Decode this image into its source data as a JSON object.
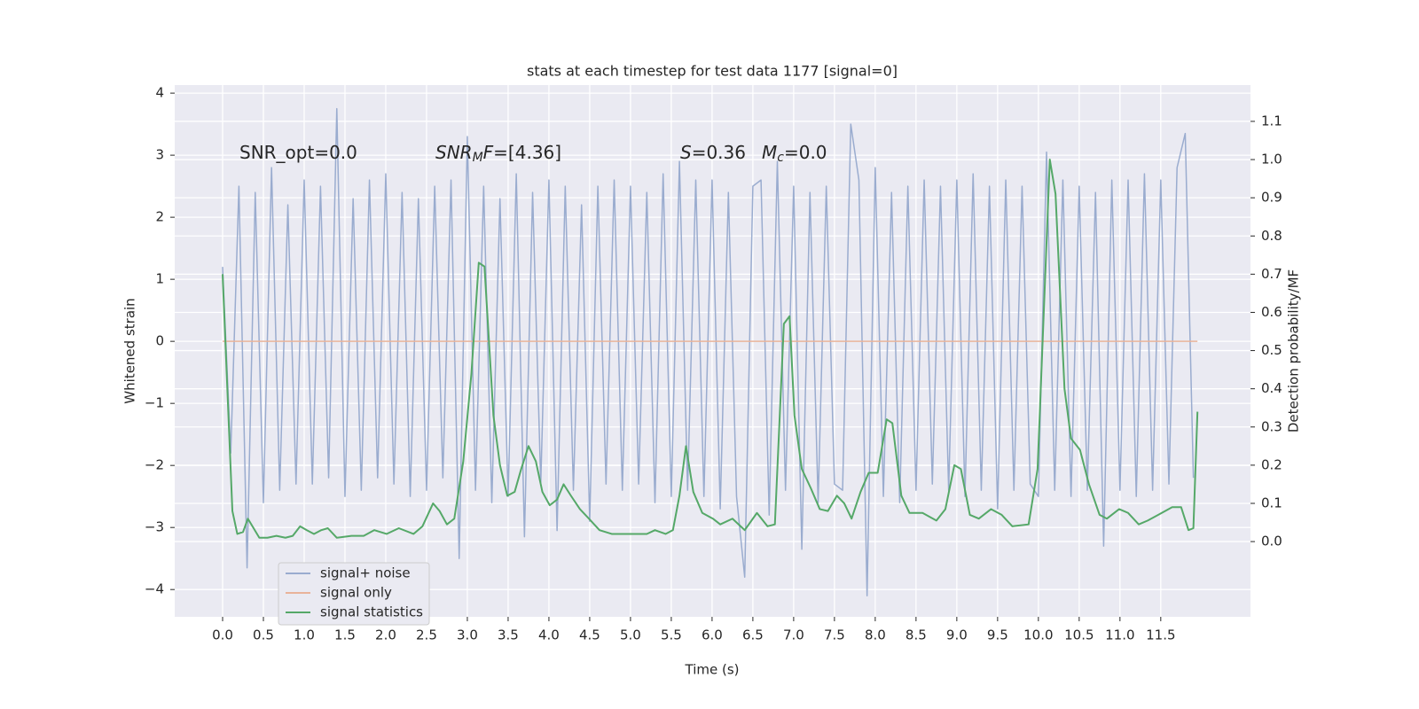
{
  "chart_data": {
    "type": "line",
    "title": "stats at each timestep for test data 1177 [signal=0]",
    "x_label": "Time (s)",
    "y_label": "Whitened strain",
    "y2_label": "Detection probability/MF",
    "xlim": [
      -0.587,
      12.6
    ],
    "ylim": [
      -4.44,
      4.13
    ],
    "y2lim": [
      -0.197,
      1.195
    ],
    "xticks": [
      {
        "value": 0,
        "label": "0.0"
      },
      0.5,
      {
        "value": 1,
        "label": "1.0"
      },
      1.5,
      {
        "value": 2,
        "label": "2.0"
      },
      2.5,
      {
        "value": 3,
        "label": "3.0"
      },
      3.5,
      {
        "value": 4,
        "label": "4.0"
      },
      4.5,
      {
        "value": 5,
        "label": "5.0"
      },
      5.5,
      {
        "value": 6,
        "label": "6.0"
      },
      6.5,
      {
        "value": 7,
        "label": "7.0"
      },
      7.5,
      {
        "value": 8,
        "label": "8.0"
      },
      8.5,
      {
        "value": 9,
        "label": "9.0"
      },
      9.5,
      {
        "value": 10,
        "label": "10.0"
      },
      10.5,
      {
        "value": 11,
        "label": "11.0"
      },
      11.5
    ],
    "yticks": [
      {
        "value": -4,
        "label": "−4"
      },
      {
        "value": -3,
        "label": "−3"
      },
      {
        "value": -2,
        "label": "−2"
      },
      {
        "value": -1,
        "label": "−1"
      },
      0,
      1,
      2,
      3,
      4
    ],
    "y2ticks": [
      {
        "value": 0,
        "label": "0.0"
      },
      0.1,
      0.2,
      0.3,
      0.4,
      0.5,
      0.6,
      0.7,
      0.8,
      0.9,
      {
        "value": 1,
        "label": "1.0"
      },
      1.1
    ],
    "grid": true,
    "legend": "lower left",
    "series": [
      {
        "name": "signal+ noise",
        "color": "#9aaccf",
        "x": [
          0,
          0.1,
          0.2,
          0.3,
          0.4,
          0.5,
          0.6,
          0.7,
          0.8,
          0.9,
          1,
          1.1,
          1.2,
          1.3,
          1.4,
          1.5,
          1.6,
          1.7,
          1.8,
          1.9,
          2,
          2.1,
          2.2,
          2.3,
          2.4,
          2.5,
          2.6,
          2.7,
          2.8,
          2.9,
          3,
          3.1,
          3.2,
          3.3,
          3.4,
          3.5,
          3.6,
          3.7,
          3.8,
          3.9,
          4,
          4.1,
          4.2,
          4.3,
          4.4,
          4.5,
          4.6,
          4.7,
          4.8,
          4.9,
          5,
          5.1,
          5.2,
          5.3,
          5.4,
          5.5,
          5.6,
          5.7,
          5.8,
          5.9,
          6,
          6.1,
          6.2,
          6.3,
          6.4,
          6.5,
          6.6,
          6.7,
          6.8,
          6.9,
          7,
          7.1,
          7.2,
          7.3,
          7.4,
          7.5,
          7.6,
          7.7,
          7.8,
          7.9,
          8,
          8.1,
          8.2,
          8.3,
          8.4,
          8.5,
          8.6,
          8.7,
          8.8,
          8.9,
          9,
          9.1,
          9.2,
          9.3,
          9.4,
          9.5,
          9.6,
          9.7,
          9.8,
          9.9,
          10,
          10.1,
          10.2,
          10.3,
          10.4,
          10.5,
          10.6,
          10.7,
          10.8,
          10.9,
          11,
          11.1,
          11.2,
          11.3,
          11.4,
          11.5,
          11.6,
          11.7,
          11.8,
          11.9
        ],
        "values": [
          1.2,
          -1.8,
          2.5,
          -3.65,
          2.4,
          -2.6,
          2.8,
          -2.4,
          2.2,
          -2.3,
          2.6,
          -2.3,
          2.5,
          -2.2,
          3.75,
          -2.5,
          2.3,
          -2.4,
          2.6,
          -2.2,
          2.7,
          -2.3,
          2.4,
          -2.5,
          2.3,
          -2.4,
          2.5,
          -2.2,
          2.6,
          -3.5,
          3.3,
          -2.4,
          2.5,
          -2.6,
          2.3,
          -2.5,
          2.7,
          -3.15,
          2.4,
          -2.3,
          2.6,
          -3.05,
          2.5,
          -2.4,
          2.2,
          -2.9,
          2.5,
          -2.3,
          2.6,
          -2.4,
          2.5,
          -2.3,
          2.4,
          -2.6,
          2.7,
          -2.5,
          2.9,
          -2.4,
          2.6,
          -2.5,
          2.6,
          -2.7,
          2.4,
          -2.5,
          -3.8,
          2.5,
          2.6,
          -2.8,
          2.9,
          -2.4,
          2.5,
          -3.35,
          2.4,
          -2.6,
          2.5,
          -2.3,
          -2.4,
          3.5,
          2.6,
          -4.1,
          2.8,
          -2.5,
          2.4,
          -2.6,
          2.5,
          -2.4,
          2.6,
          -2.3,
          2.5,
          -2.4,
          2.6,
          -2.5,
          2.7,
          -2.4,
          2.5,
          -2.7,
          2.6,
          -2.4,
          2.5,
          -2.3,
          -2.5,
          3.05,
          -2.4,
          2.6,
          -2.5,
          2.5,
          -2.4,
          2.4,
          -3.3,
          2.6,
          -2.4,
          2.6,
          -2.5,
          2.7,
          -2.4,
          2.6,
          -2.3,
          2.8,
          3.35,
          -2.2
        ]
      },
      {
        "name": "signal only",
        "color": "#e9b39a",
        "x": [
          0,
          11.95
        ],
        "values": [
          0,
          0
        ]
      },
      {
        "name": "signal statistics",
        "color": "#55a868",
        "axis": "y2",
        "x": [
          0,
          0.12,
          0.18,
          0.25,
          0.31,
          0.45,
          0.55,
          0.66,
          0.77,
          0.86,
          0.95,
          1.03,
          1.12,
          1.21,
          1.29,
          1.4,
          1.58,
          1.73,
          1.86,
          2.01,
          2.16,
          2.34,
          2.45,
          2.58,
          2.66,
          2.75,
          2.84,
          2.95,
          3.05,
          3.14,
          3.21,
          3.32,
          3.4,
          3.49,
          3.58,
          3.66,
          3.75,
          3.84,
          3.92,
          4.01,
          4.1,
          4.18,
          4.27,
          4.38,
          4.49,
          4.62,
          4.77,
          4.92,
          5.05,
          5.2,
          5.3,
          5.43,
          5.52,
          5.6,
          5.68,
          5.77,
          5.88,
          6.01,
          6.1,
          6.25,
          6.4,
          6.55,
          6.68,
          6.77,
          6.88,
          6.95,
          7.01,
          7.1,
          7.21,
          7.32,
          7.42,
          7.53,
          7.62,
          7.71,
          7.82,
          7.92,
          8.03,
          8.14,
          8.21,
          8.32,
          8.42,
          8.58,
          8.75,
          8.86,
          8.97,
          9.05,
          9.16,
          9.27,
          9.42,
          9.55,
          9.68,
          9.88,
          9.99,
          10.14,
          10.21,
          10.32,
          10.4,
          10.51,
          10.62,
          10.75,
          10.84,
          10.99,
          11.1,
          11.23,
          11.34,
          11.47,
          11.64,
          11.75,
          11.84,
          11.9,
          11.95
        ],
        "values": [
          0.7,
          0.08,
          0.02,
          0.025,
          0.06,
          0.01,
          0.01,
          0.015,
          0.01,
          0.015,
          0.04,
          0.03,
          0.02,
          0.03,
          0.035,
          0.01,
          0.015,
          0.015,
          0.03,
          0.02,
          0.035,
          0.02,
          0.04,
          0.1,
          0.08,
          0.045,
          0.06,
          0.21,
          0.44,
          0.73,
          0.72,
          0.33,
          0.2,
          0.12,
          0.13,
          0.19,
          0.25,
          0.21,
          0.13,
          0.095,
          0.11,
          0.15,
          0.12,
          0.085,
          0.06,
          0.03,
          0.02,
          0.02,
          0.02,
          0.02,
          0.03,
          0.02,
          0.03,
          0.12,
          0.25,
          0.13,
          0.075,
          0.06,
          0.045,
          0.06,
          0.03,
          0.075,
          0.04,
          0.045,
          0.57,
          0.59,
          0.33,
          0.19,
          0.14,
          0.085,
          0.08,
          0.12,
          0.1,
          0.06,
          0.13,
          0.18,
          0.18,
          0.32,
          0.31,
          0.12,
          0.075,
          0.075,
          0.055,
          0.085,
          0.2,
          0.19,
          0.07,
          0.06,
          0.085,
          0.07,
          0.04,
          0.045,
          0.19,
          1.0,
          0.91,
          0.4,
          0.27,
          0.24,
          0.15,
          0.07,
          0.06,
          0.085,
          0.075,
          0.045,
          0.055,
          0.07,
          0.09,
          0.09,
          0.03,
          0.035,
          0.34
        ]
      }
    ],
    "annotations": [
      [
        {
          "text": "SNR_opt=0.0"
        }
      ],
      [
        {
          "text": "SNR",
          "italic": true
        },
        {
          "text": "M",
          "italic": true,
          "sub": true
        },
        {
          "text": "F",
          "italic": true
        },
        {
          "text": "=[4.36]"
        }
      ],
      [
        {
          "text": "S",
          "italic": true
        },
        {
          "text": "=0.36"
        }
      ],
      [
        {
          "text": "M",
          "italic": true
        },
        {
          "text": "c",
          "italic": true,
          "sub": true
        },
        {
          "text": "=0.0"
        }
      ]
    ]
  }
}
